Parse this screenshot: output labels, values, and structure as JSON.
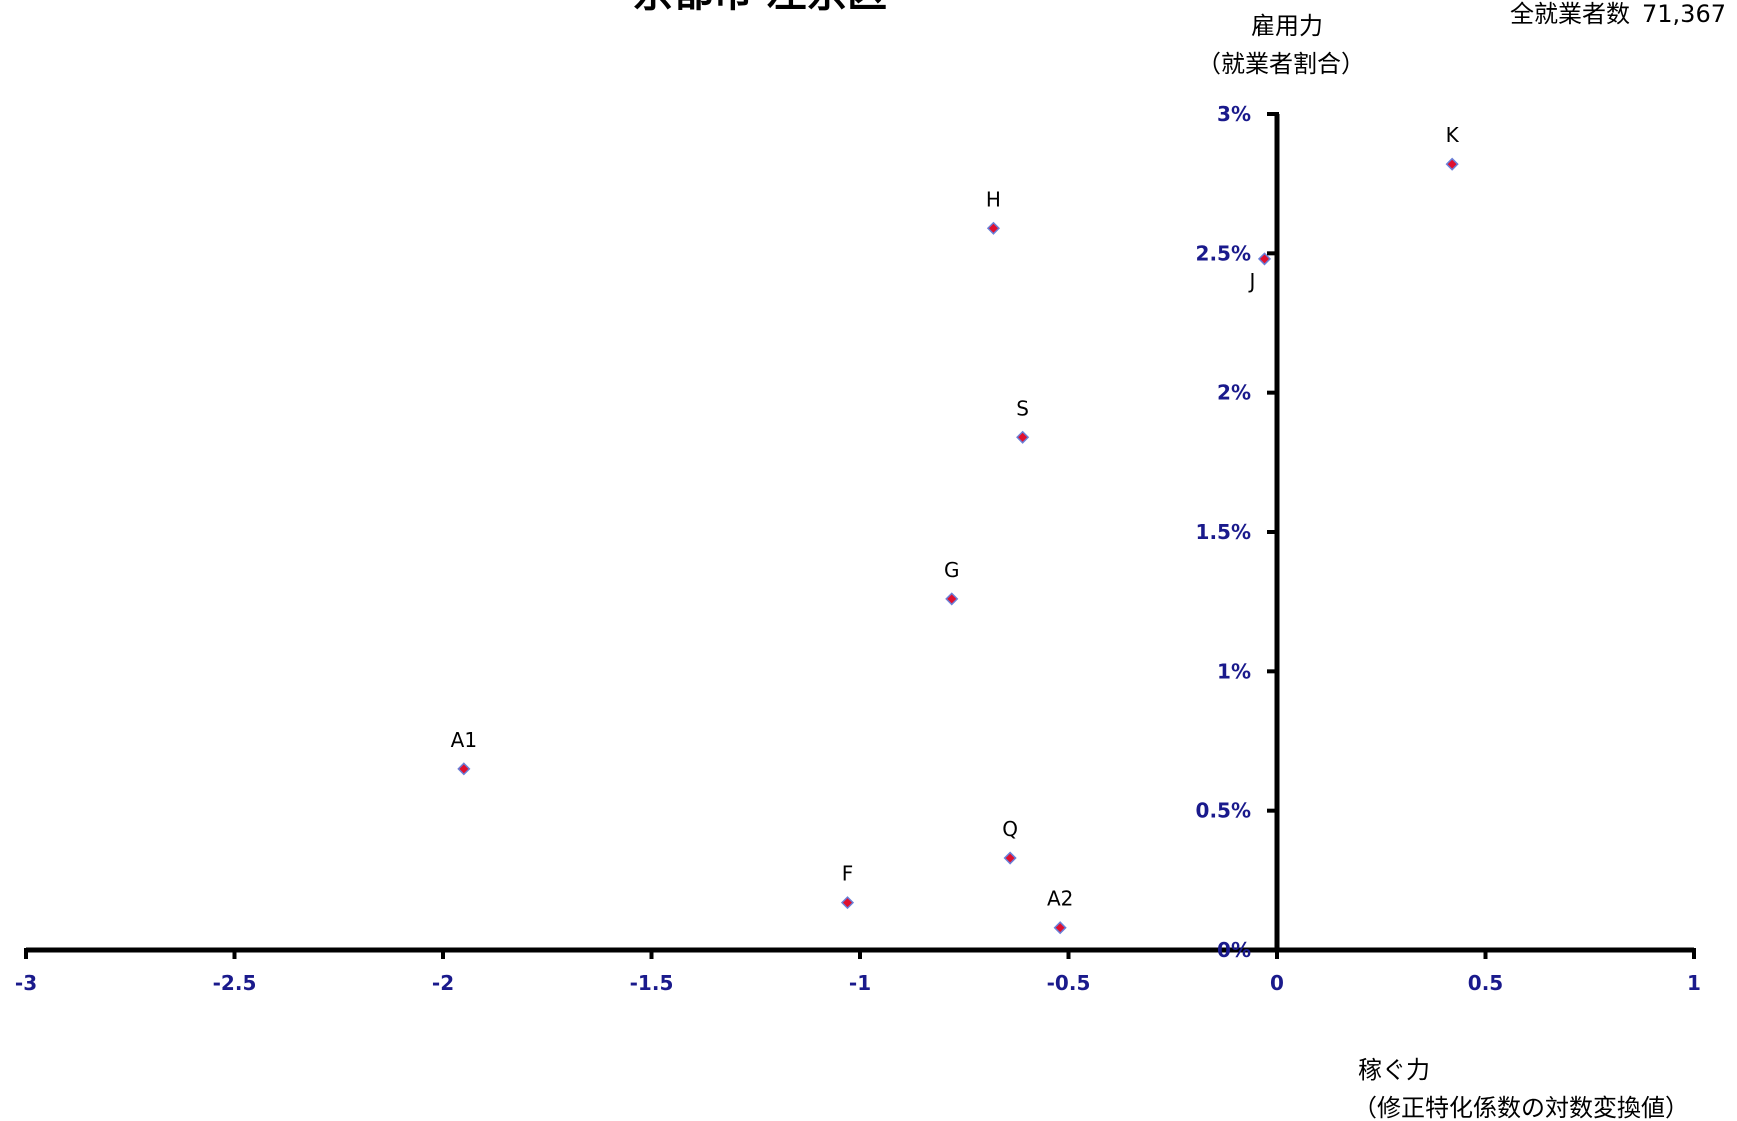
{
  "chart_data": {
    "type": "scatter",
    "title": "京都市 左京区",
    "total": {
      "label": "全就業者数",
      "value": "71,367"
    },
    "ylabel": {
      "line1": "雇用力",
      "line2": "（就業者割合）"
    },
    "xlabel": {
      "line1": "稼ぐ力",
      "line2": "（修正特化係数の対数変換値）"
    },
    "xlim": [
      -3,
      1
    ],
    "ylim": [
      0,
      3
    ],
    "x_ticks": [
      {
        "value": -3,
        "label": "-3"
      },
      {
        "value": -2.5,
        "label": "-2.5"
      },
      {
        "value": -2,
        "label": "-2"
      },
      {
        "value": -1.5,
        "label": "-1.5"
      },
      {
        "value": -1,
        "label": "-1"
      },
      {
        "value": -0.5,
        "label": "-0.5"
      },
      {
        "value": 0,
        "label": "0"
      },
      {
        "value": 0.5,
        "label": "0.5"
      },
      {
        "value": 1,
        "label": "1"
      }
    ],
    "y_ticks": [
      {
        "value": 0,
        "label": "0%"
      },
      {
        "value": 0.5,
        "label": "0.5%"
      },
      {
        "value": 1,
        "label": "1%"
      },
      {
        "value": 1.5,
        "label": "1.5%"
      },
      {
        "value": 2,
        "label": "2%"
      },
      {
        "value": 2.5,
        "label": "2.5%"
      },
      {
        "value": 3,
        "label": "3%"
      }
    ],
    "points": [
      {
        "label": "K",
        "x": 0.42,
        "y": 2.82,
        "label_pos": "above"
      },
      {
        "label": "H",
        "x": -0.68,
        "y": 2.59,
        "label_pos": "above"
      },
      {
        "label": "J",
        "x": -0.03,
        "y": 2.48,
        "label_pos": "below"
      },
      {
        "label": "S",
        "x": -0.61,
        "y": 1.84,
        "label_pos": "above"
      },
      {
        "label": "G",
        "x": -0.78,
        "y": 1.26,
        "label_pos": "above"
      },
      {
        "label": "A1",
        "x": -1.95,
        "y": 0.65,
        "label_pos": "above"
      },
      {
        "label": "Q",
        "x": -0.64,
        "y": 0.33,
        "label_pos": "above"
      },
      {
        "label": "F",
        "x": -1.03,
        "y": 0.17,
        "label_pos": "above"
      },
      {
        "label": "A2",
        "x": -0.52,
        "y": 0.08,
        "label_pos": "above"
      }
    ],
    "marker": {
      "shape": "diamond",
      "fill": "#e0102f",
      "stroke": "#6a7fd8"
    },
    "axis_color": "#000000",
    "tick_label_color": "#1a1a8c",
    "grid": false,
    "legend": false
  }
}
